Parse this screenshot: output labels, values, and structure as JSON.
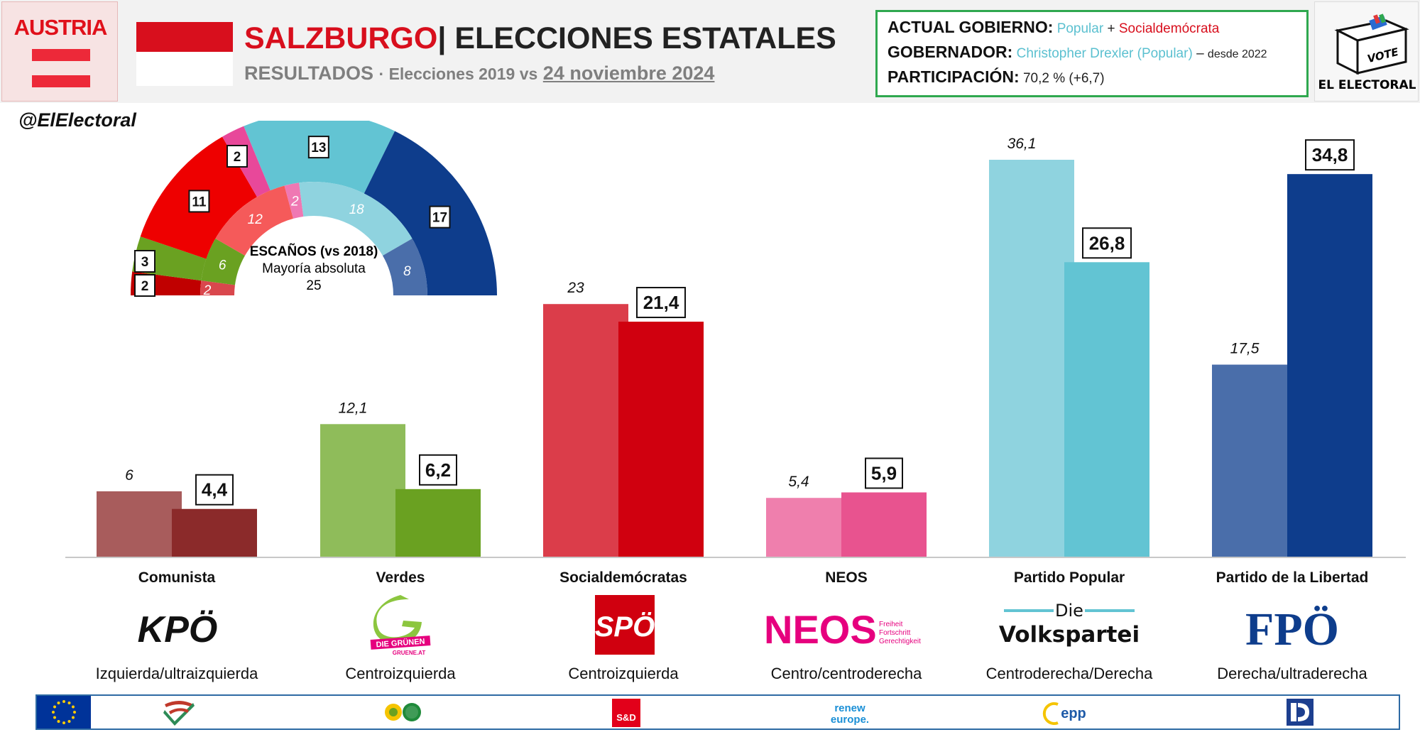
{
  "header": {
    "country": "AUSTRIA",
    "region": "SALZBURGO",
    "separator": "|",
    "title": "ELECCIONES ESTATALES",
    "subtitle_label": "RESULTADOS",
    "subtitle_mid": "· Elecciones 2019 vs",
    "subtitle_date": "24 noviembre 2024"
  },
  "government": {
    "gov_label": "ACTUAL GOBIERNO:",
    "gov_party1": "Popular",
    "gov_plus": "+",
    "gov_party2": "Socialdemócrata",
    "governor_label": "GOBERNADOR:",
    "governor_name": "Christopher Drexler (Popular)",
    "governor_dash": "–",
    "governor_since": "desde 2022",
    "turnout_label": "PARTICIPACIÓN:",
    "turnout_value": "70,2 % (+6,7)"
  },
  "brand": {
    "vote_text": "VOTE",
    "name": "EL ELECTORAL",
    "handle": "@ElElectoral"
  },
  "parliament": {
    "title": "ESCAÑOS (vs 2018)",
    "majority_label": "Mayoría absoluta",
    "majority_value": "25",
    "order": [
      "Comunista",
      "Verdes",
      "Socialdemócratas",
      "NEOS",
      "Partido Popular",
      "Partido de la Libertad"
    ],
    "seats_2024": [
      2,
      3,
      11,
      2,
      13,
      17
    ],
    "seats_2018": [
      2,
      6,
      12,
      2,
      18,
      8
    ],
    "outer_colors": [
      "#c00000",
      "#6aa121",
      "#ee0000",
      "#e8489a",
      "#62c4d3",
      "#0e3d8c"
    ],
    "inner_colors": [
      "#d9474d",
      "#6aa121",
      "#f55a5a",
      "#ef78b3",
      "#8fd3df",
      "#4a6eaa"
    ]
  },
  "chart_data": {
    "type": "bar",
    "categories": [
      "Comunista",
      "Verdes",
      "Socialdemócratas",
      "NEOS",
      "Partido Popular",
      "Partido de la Libertad"
    ],
    "series": [
      {
        "values": [
          6,
          12.1,
          23,
          5.4,
          36.1,
          17.5
        ],
        "labels": [
          "6",
          "12,1",
          "23",
          "5,4",
          "36,1",
          "17,5"
        ],
        "colors": [
          "#a85c5c",
          "#8fbc5a",
          "#db3d4a",
          "#ef7fad",
          "#8fd3df",
          "#4a6eaa"
        ]
      },
      {
        "values": [
          4.4,
          6.2,
          21.4,
          5.9,
          26.8,
          34.8
        ],
        "labels": [
          "4,4",
          "6,2",
          "21,4",
          "5,9",
          "26,8",
          "34,8"
        ],
        "colors": [
          "#8b2a2a",
          "#6aa121",
          "#d0000f",
          "#e8538f",
          "#62c4d3",
          "#0e3d8c"
        ]
      }
    ],
    "ylim": [
      0,
      36.1
    ]
  },
  "parties": [
    {
      "name": "Comunista",
      "logo_text": "KPÖ",
      "ideology": "Izquierda/ultraizquierda"
    },
    {
      "name": "Verdes",
      "logo_text": "DIE GRÜNEN",
      "logo_sub": "GRUENE.AT",
      "ideology": "Centroizquierda"
    },
    {
      "name": "Socialdemócratas",
      "logo_text": "SPÖ",
      "ideology": "Centroizquierda"
    },
    {
      "name": "NEOS",
      "logo_text": "NEOS",
      "logo_sub1": "Freiheit",
      "logo_sub2": "Fortschritt",
      "logo_sub3": "Gerechtigkeit",
      "ideology": "Centro/centroderecha"
    },
    {
      "name": "Partido Popular",
      "logo_text1": "Die",
      "logo_text2": "Volkspartei",
      "ideology": "Centroderecha/Derecha"
    },
    {
      "name": "Partido de la Libertad",
      "logo_text": "FPÖ",
      "ideology": "Derecha/ultraderecha"
    }
  ],
  "eu_groups": {
    "sd": "S&D",
    "renew1": "renew",
    "renew2": "europe.",
    "epp": "epp"
  }
}
